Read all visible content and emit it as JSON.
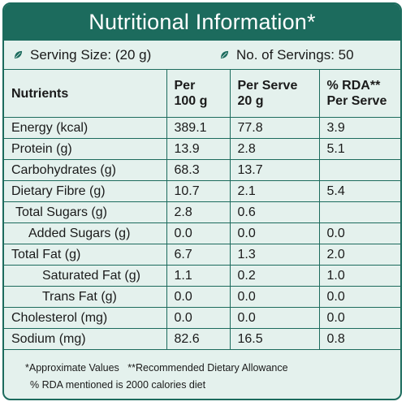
{
  "title": "Nutritional Information*",
  "serving": {
    "size_label": "Serving Size: (20 g)",
    "servings_label": "No. of Servings: 50",
    "icon": "leaf-icon",
    "accent_color": "#1c6b5d"
  },
  "table": {
    "headers": {
      "nutrients": "Nutrients",
      "per100_line1": "Per",
      "per100_line2": "100 g",
      "perserve_line1": "Per Serve",
      "perserve_line2": "20 g",
      "rda_line1": "% RDA**",
      "rda_line2": "Per Serve"
    },
    "rows": [
      {
        "name": "Energy (kcal)",
        "per100": "389.1",
        "perserve": "77.8",
        "rda": "3.9"
      },
      {
        "name": "Protein (g)",
        "per100": "13.9",
        "perserve": "2.8",
        "rda": "5.1"
      },
      {
        "name": "Carbohydrates (g)",
        "per100": "68.3",
        "perserve": "13.7",
        "rda": ""
      },
      {
        "name": "Dietary Fibre (g)",
        "per100": "10.7",
        "perserve": "2.1",
        "rda": "5.4"
      },
      {
        "name": "Total Sugars (g)",
        "per100": "2.8",
        "perserve": "0.6",
        "rda": ""
      },
      {
        "name": "Added Sugars (g)",
        "per100": "0.0",
        "perserve": "0.0",
        "rda": "0.0"
      },
      {
        "name": "Total Fat (g)",
        "per100": "6.7",
        "perserve": "1.3",
        "rda": "2.0"
      },
      {
        "name": "Saturated Fat (g)",
        "per100": "1.1",
        "perserve": "0.2",
        "rda": "1.0"
      },
      {
        "name": "Trans Fat (g)",
        "per100": "0.0",
        "perserve": "0.0",
        "rda": "0.0"
      },
      {
        "name": "Cholesterol (mg)",
        "per100": "0.0",
        "perserve": "0.0",
        "rda": "0.0"
      },
      {
        "name": "Sodium (mg)",
        "per100": "82.6",
        "perserve": "16.5",
        "rda": "0.8"
      }
    ]
  },
  "footnotes": {
    "approx": "*Approximate Values",
    "rda_def": "**Recommended Dietary Allowance",
    "rda_basis": "% RDA mentioned is 2000 calories diet"
  }
}
